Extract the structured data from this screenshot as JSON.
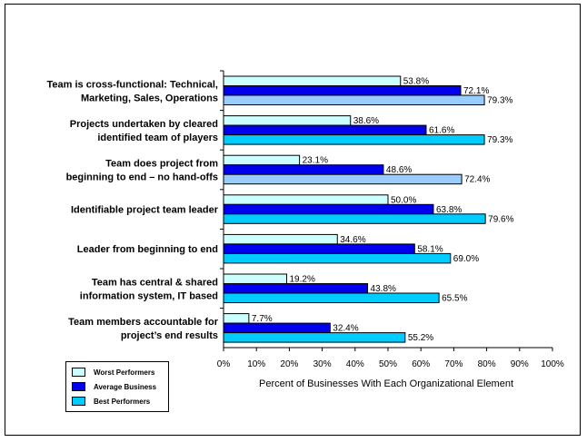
{
  "chart_data": {
    "type": "bar",
    "orientation": "horizontal",
    "categories": [
      [
        "Team is cross-functional: Technical,",
        "Marketing, Sales, Operations"
      ],
      [
        "Projects undertaken by cleared",
        "identified team of players"
      ],
      [
        "Team does project from",
        "beginning to end – no hand-offs"
      ],
      [
        "Identifiable project team leader"
      ],
      [
        "Leader from beginning to end"
      ],
      [
        "Team has central & shared",
        "information system, IT based"
      ],
      [
        "Team members accountable for",
        "project’s end results"
      ]
    ],
    "series": [
      {
        "name": "Worst Performers",
        "color": "#ccffff",
        "values": [
          53.8,
          38.6,
          23.1,
          50.0,
          34.6,
          19.2,
          7.7
        ]
      },
      {
        "name": "Average Business",
        "color": "#0000ee",
        "values": [
          72.1,
          61.6,
          48.6,
          63.8,
          58.1,
          43.8,
          32.4
        ]
      },
      {
        "name": "Best Performers",
        "color": "#00ccff",
        "values": [
          79.3,
          79.3,
          72.4,
          79.6,
          69.0,
          65.5,
          55.2
        ]
      }
    ],
    "value_labels": [
      [
        "53.8%",
        "72.1%",
        "79.3%"
      ],
      [
        "38.6%",
        "61.6%",
        "79.3%"
      ],
      [
        "23.1%",
        "48.6%",
        "72.4%"
      ],
      [
        "50.0%",
        "63.8%",
        "79.6%"
      ],
      [
        "34.6%",
        "58.1%",
        "69.0%"
      ],
      [
        "19.2%",
        "43.8%",
        "65.5%"
      ],
      [
        "7.7%",
        "32.4%",
        "55.2%"
      ]
    ],
    "third_series_alt_color": "#99ccff",
    "third_series_alt_color_rows": [
      0,
      2
    ],
    "xlim": [
      0,
      100
    ],
    "xticks": [
      "0%",
      "10%",
      "20%",
      "30%",
      "40%",
      "50%",
      "60%",
      "70%",
      "80%",
      "90%",
      "100%"
    ],
    "xlabel": "Percent of Businesses With Each Organizational Element",
    "legend_position": "bottom-left"
  },
  "legend": {
    "items": [
      {
        "label": "Worst Performers",
        "color": "#ccffff"
      },
      {
        "label": "Average Business",
        "color": "#0000ee"
      },
      {
        "label": "Best Performers",
        "color": "#00ccff"
      }
    ]
  }
}
